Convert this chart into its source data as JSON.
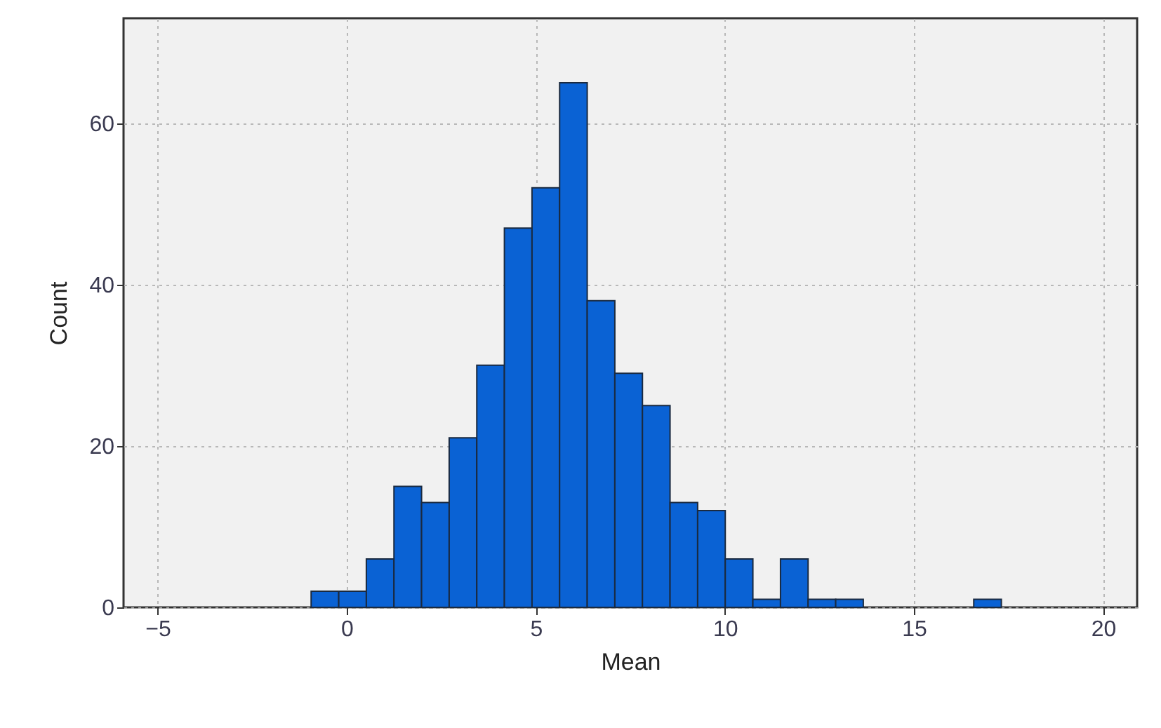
{
  "chart_data": {
    "type": "histogram",
    "xlabel": "Mean",
    "ylabel": "Count",
    "bins": [
      -0.94,
      -0.21,
      0.52,
      1.25,
      1.98,
      2.71,
      3.44,
      4.17,
      4.9,
      5.63,
      6.36,
      7.09,
      7.82,
      8.55,
      9.28,
      10.01,
      10.74,
      11.47,
      12.2,
      12.93,
      13.66,
      14.39,
      15.12,
      15.85,
      16.58,
      17.31
    ],
    "values": [
      2,
      2,
      6,
      15,
      13,
      21,
      30,
      47,
      52,
      65,
      38,
      29,
      25,
      13,
      12,
      6,
      1,
      6,
      1,
      1,
      0,
      0,
      0,
      0,
      1
    ],
    "color": "#0a62d4",
    "xlim": [
      -5.9,
      20.9
    ],
    "xticks": [
      -5,
      0,
      5,
      10,
      15,
      20
    ],
    "ylim": [
      0,
      73
    ],
    "yticks": [
      0,
      20,
      40,
      60
    ],
    "grid": true
  }
}
